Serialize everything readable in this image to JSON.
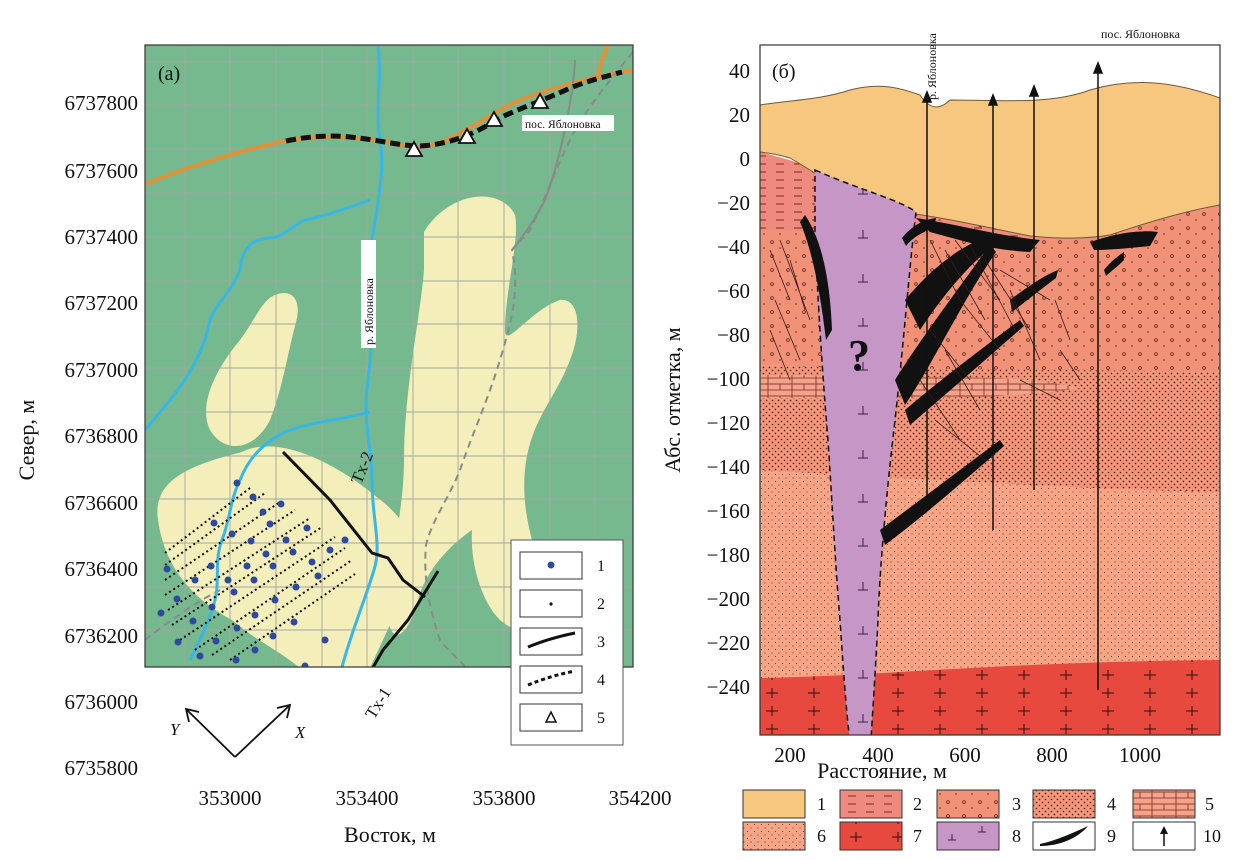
{
  "panel_a": {
    "panel_label": "(a)",
    "xlabel": "Восток, м",
    "ylabel": "Север, м",
    "x_ticks": [
      "353000",
      "353400",
      "353800",
      "354200"
    ],
    "y_ticks": [
      "6737800",
      "6737600",
      "6737400",
      "6737200",
      "6737000",
      "6736800",
      "6736600",
      "6736400",
      "6736200",
      "6736000",
      "6735800"
    ],
    "river_label": "р. Яблоновка",
    "village_label": "пос. Яблоновка",
    "tx1_label": "Tx-1",
    "tx2_label": "Tx-2",
    "axis_x_label": "X",
    "axis_y_label": "Y",
    "legend": [
      "1",
      "2",
      "3",
      "4",
      "5"
    ],
    "colors": {
      "background": "#76b98f",
      "sediment": "#f4eebb",
      "river": "#38b6e8",
      "road": "#e0923a"
    }
  },
  "panel_b": {
    "panel_label": "(б)",
    "xlabel": "Расстояние, м",
    "ylabel": "Абс. отметка, м",
    "x_ticks": [
      "200",
      "400",
      "600",
      "800",
      "1000"
    ],
    "y_ticks": [
      "40",
      "20",
      "0",
      "−20",
      "−40",
      "−60",
      "−80",
      "−100",
      "−120",
      "−140",
      "−160",
      "−180",
      "−200",
      "−220",
      "−240"
    ],
    "river_label": "р. Яблоновка",
    "village_label": "пос. Яблоновка",
    "question": "?",
    "legend": [
      "1",
      "2",
      "3",
      "4",
      "5",
      "6",
      "7",
      "8",
      "9",
      "10"
    ],
    "colors": {
      "layer1": "#f8c77f",
      "layer2": "#ee8a7e",
      "layer3": "#f19278",
      "layer6": "#f6a586",
      "layer7": "#e8493e",
      "layer8": "#c596c6"
    }
  }
}
